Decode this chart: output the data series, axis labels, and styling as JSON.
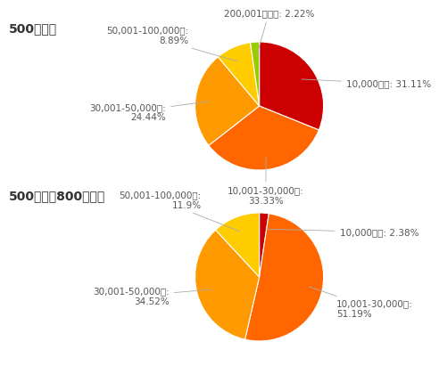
{
  "chart1_title": "500万未満",
  "chart2_title": "500万以上800万未満",
  "chart1_labels": [
    "10,000未満: 31.11%",
    "10,001-30,000円:\n33.33%",
    "30,001-50,000円:\n24.44%",
    "50,001-100,000円:\n8.89%",
    "200,001円以上: 2.22%"
  ],
  "chart1_values": [
    31.11,
    33.33,
    24.44,
    8.89,
    2.22
  ],
  "chart1_colors": [
    "#cc0000",
    "#ff6600",
    "#ff9900",
    "#ffcc00",
    "#99cc00"
  ],
  "chart2_labels": [
    "10,000未満: 2.38%",
    "10,001-30,000円:\n51.19%",
    "30,001-50,000円:\n34.52%",
    "50,001-100,000円:\n11.9%"
  ],
  "chart2_values": [
    2.38,
    51.19,
    34.52,
    11.9
  ],
  "chart2_colors": [
    "#cc0000",
    "#ff6600",
    "#ff9900",
    "#ffcc00"
  ],
  "label_fontsize": 7.5,
  "title_fontsize": 10,
  "bg_color": "#ffffff",
  "text_color": "#555555"
}
